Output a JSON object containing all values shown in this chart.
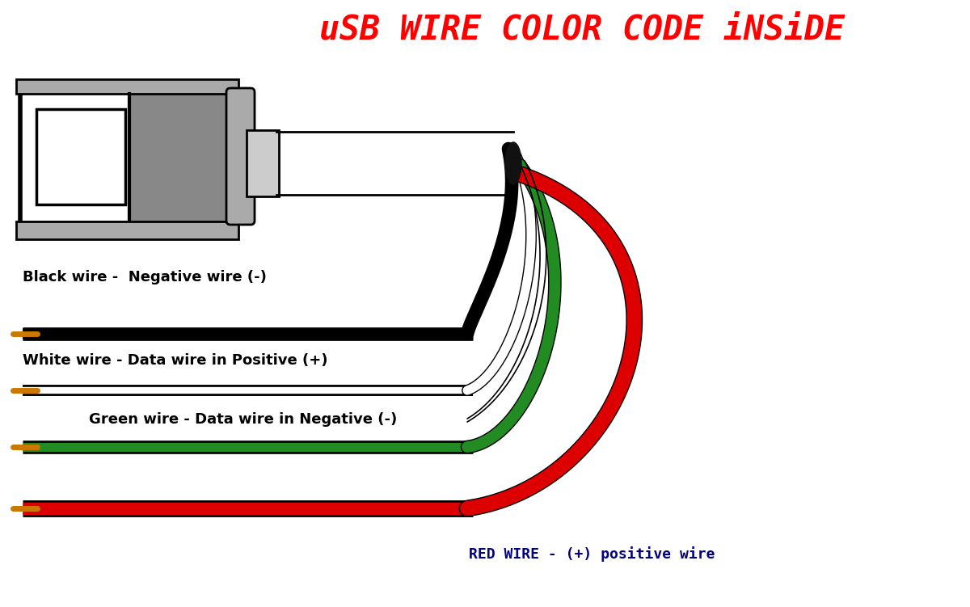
{
  "title": "uSB WIRE COLOR CODE iNSiDE",
  "title_color": "#ff0000",
  "title_fontsize": 30,
  "bg_color": "#ffffff",
  "labels": {
    "black": "Black wire -  Negative wire (-)",
    "white": "White wire - Data wire in Positive (+)",
    "green": "Green wire - Data wire in Negative (-)",
    "red": "RED WIRE - (+) positive wire"
  },
  "label_colors": {
    "black": "#000000",
    "white": "#000000",
    "green": "#000000",
    "red": "#000080"
  },
  "wire_colors": {
    "black": "#000000",
    "white": "#ffffff",
    "green": "#228B22",
    "red": "#dd0000"
  },
  "tip_color": "#cc7700",
  "connector_body": "#e8e8e8",
  "connector_dark": "#333333",
  "connector_edge": "#000000"
}
